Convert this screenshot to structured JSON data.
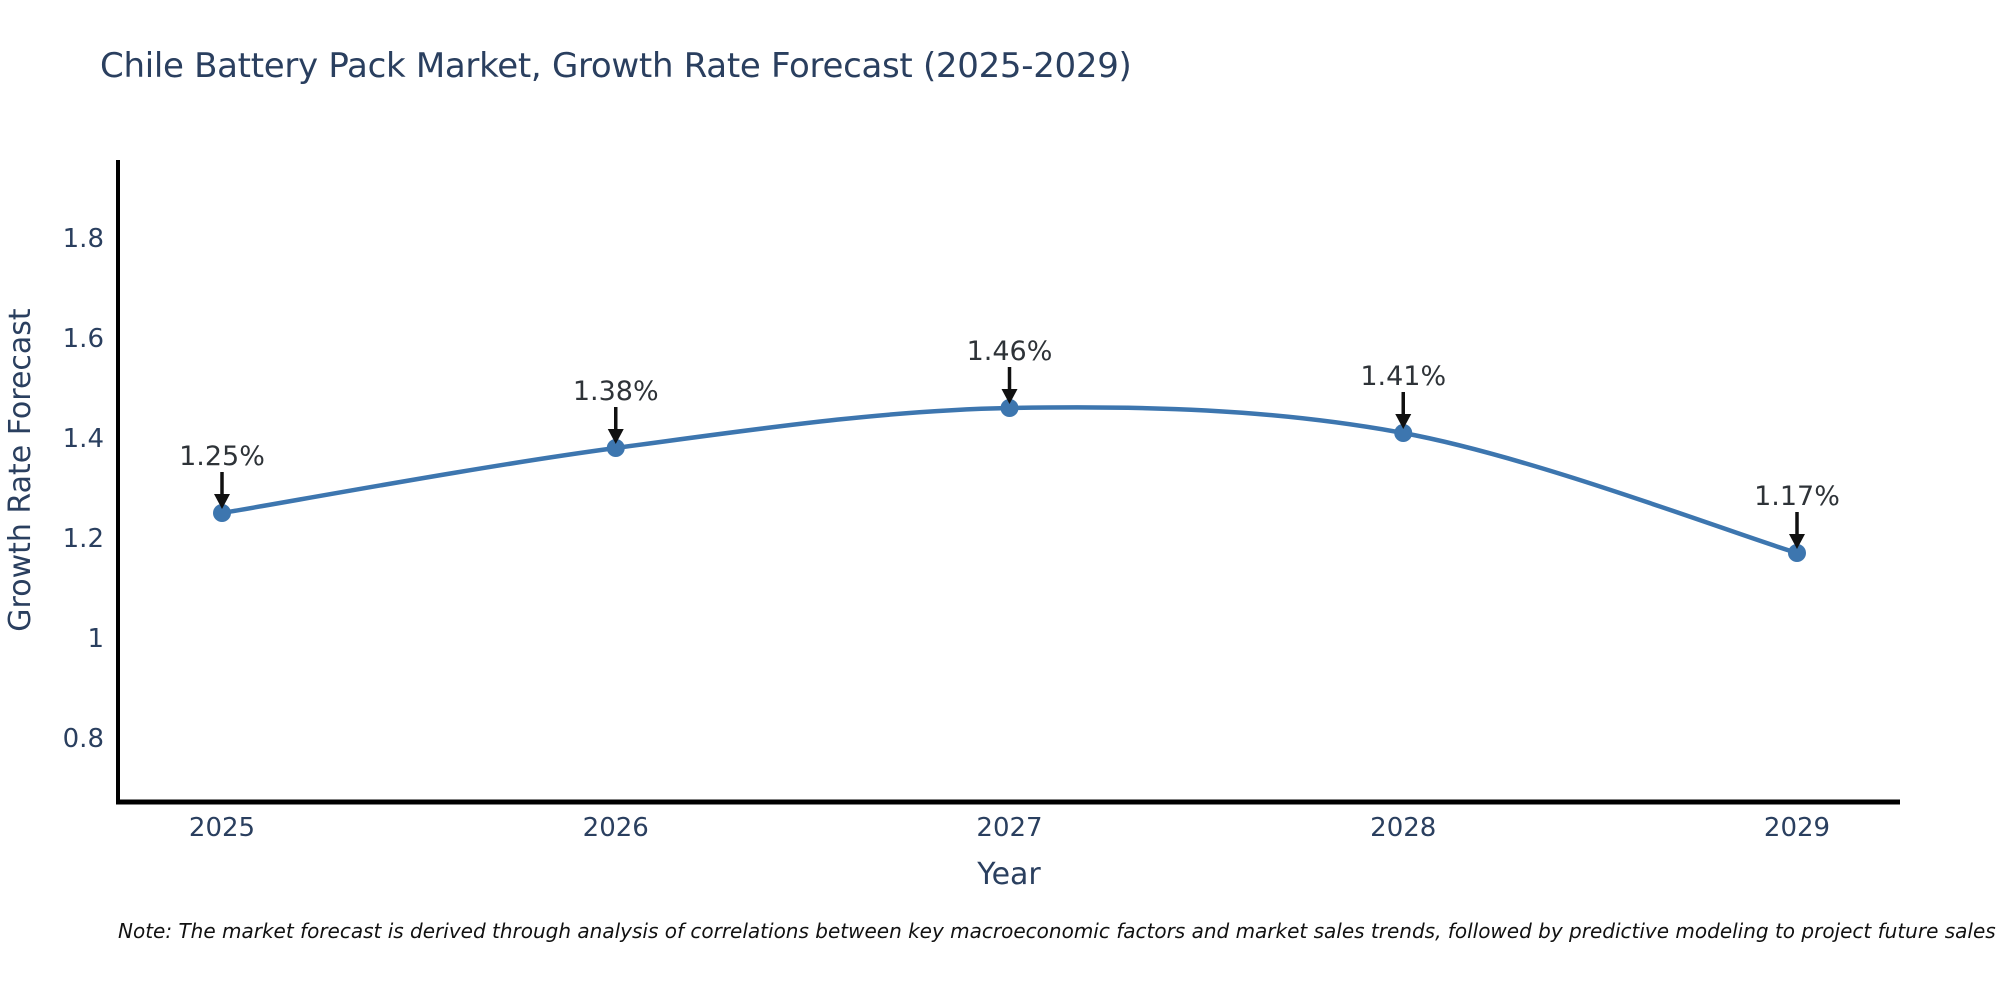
{
  "chart_data": {
    "type": "line",
    "title": "Chile Battery Pack Market, Growth Rate Forecast (2025-2029)",
    "xlabel": "Year",
    "ylabel": "Growth Rate Forecast",
    "x": [
      "2025",
      "2026",
      "2027",
      "2028",
      "2029"
    ],
    "series": [
      {
        "name": "Growth Rate Forecast",
        "values": [
          1.25,
          1.38,
          1.46,
          1.41,
          1.17
        ]
      }
    ],
    "point_labels": [
      "1.25%",
      "1.38%",
      "1.46%",
      "1.41%",
      "1.17%"
    ],
    "yticks": [
      "0.8",
      "1",
      "1.2",
      "1.4",
      "1.6",
      "1.8"
    ],
    "ytick_values": [
      0.8,
      1.0,
      1.2,
      1.4,
      1.6,
      1.8
    ],
    "ylim": [
      0.672,
      1.956
    ],
    "line_shape": "spline",
    "grid": false,
    "legend": "none",
    "markers": true,
    "colors": {
      "line": "#3d76af",
      "marker": "#3d76af",
      "arrow": "#111111",
      "axis": "#000000",
      "text": "#2a3f5f",
      "annotation_text": "#2e3338",
      "background": "#ffffff"
    }
  },
  "note": "Note: The market forecast is derived through analysis of correlations between key macroeconomic factors and market sales trends, followed by predictive modeling to project future sales"
}
